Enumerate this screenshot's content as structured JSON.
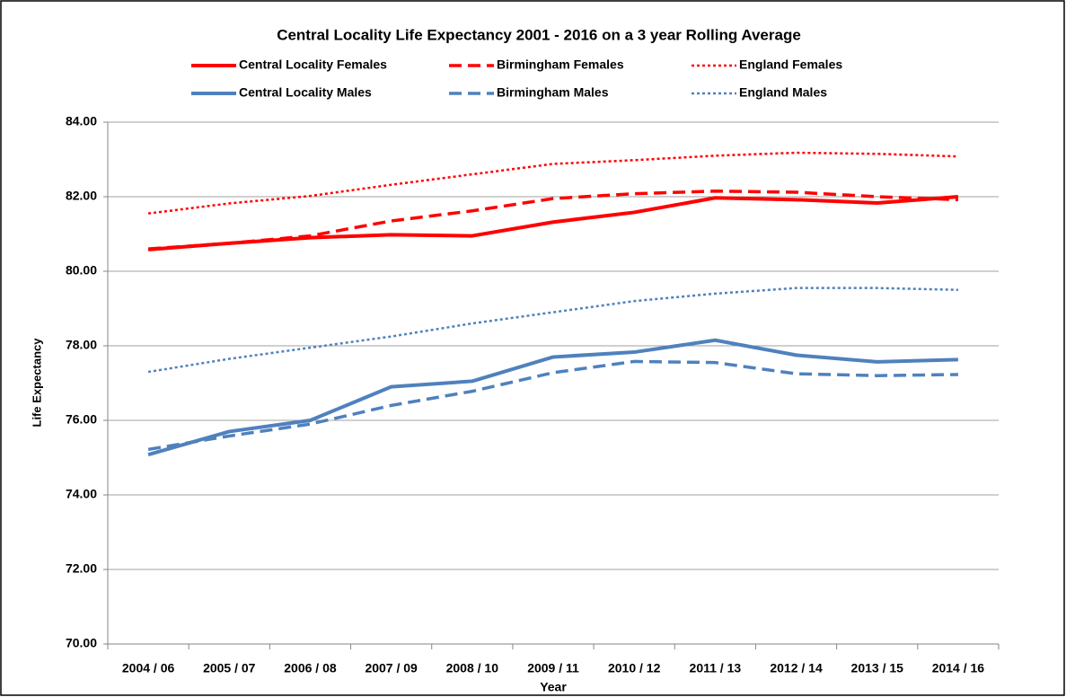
{
  "chart_data": {
    "type": "line",
    "title": "Central Locality Life Expectancy 2001 - 2016 on a 3 year Rolling Average",
    "xlabel": "Year",
    "ylabel": "Life Expectancy",
    "categories": [
      "2004 / 06",
      "2005 / 07",
      "2006 / 08",
      "2007 / 09",
      "2008 / 10",
      "2009 / 11",
      "2010 / 12",
      "2011 / 13",
      "2012 / 14",
      "2013 / 15",
      "2014 / 16"
    ],
    "series": [
      {
        "name": "Central Locality Females",
        "color": "#ff0000",
        "dash": "solid",
        "values": [
          80.58,
          80.75,
          80.9,
          80.98,
          80.95,
          81.32,
          81.58,
          81.97,
          81.92,
          81.83,
          82.0
        ]
      },
      {
        "name": "Birmingham Females",
        "color": "#ff0000",
        "dash": "dashed",
        "values": [
          80.6,
          80.75,
          80.95,
          81.35,
          81.62,
          81.95,
          82.08,
          82.15,
          82.12,
          82.0,
          81.92
        ]
      },
      {
        "name": "England Females",
        "color": "#ff0000",
        "dash": "dotted",
        "values": [
          81.55,
          81.82,
          82.02,
          82.32,
          82.6,
          82.88,
          82.98,
          83.1,
          83.18,
          83.15,
          83.08
        ]
      },
      {
        "name": "Central Locality Males",
        "color": "#4f81bd",
        "dash": "solid",
        "values": [
          75.08,
          75.7,
          76.0,
          76.9,
          77.05,
          77.7,
          77.83,
          78.15,
          77.75,
          77.57,
          77.63
        ]
      },
      {
        "name": "Birmingham Males",
        "color": "#4f81bd",
        "dash": "dashed",
        "values": [
          75.22,
          75.58,
          75.9,
          76.4,
          76.78,
          77.28,
          77.58,
          77.55,
          77.25,
          77.2,
          77.23
        ]
      },
      {
        "name": "England Males",
        "color": "#4f81bd",
        "dash": "dotted",
        "values": [
          77.3,
          77.65,
          77.95,
          78.25,
          78.6,
          78.9,
          79.2,
          79.4,
          79.55,
          79.55,
          79.5
        ]
      }
    ],
    "ylim": [
      70,
      84
    ],
    "yticks": [
      {
        "value": 70,
        "label": "70.00"
      },
      {
        "value": 72,
        "label": "72.00"
      },
      {
        "value": 74,
        "label": "74.00"
      },
      {
        "value": 76,
        "label": "76.00"
      },
      {
        "value": 78,
        "label": "78.00"
      },
      {
        "value": 80,
        "label": "80.00"
      },
      {
        "value": 82,
        "label": "82.00"
      },
      {
        "value": 84,
        "label": "84.00"
      }
    ],
    "grid": true
  }
}
